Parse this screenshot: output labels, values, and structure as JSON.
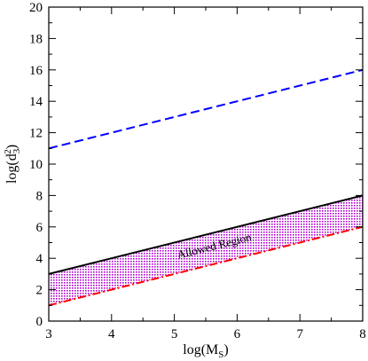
{
  "chart_data": {
    "type": "line",
    "title": "",
    "xlabel": {
      "base": "log(M",
      "sub": "S",
      "close": ")"
    },
    "ylabel": {
      "base": "log(d",
      "sub": "3",
      "sup": "2",
      "close": ")"
    },
    "xlim": [
      3,
      8
    ],
    "ylim": [
      0,
      20
    ],
    "xticks": [
      3,
      4,
      5,
      6,
      7,
      8
    ],
    "yticks": [
      0,
      2,
      4,
      6,
      8,
      10,
      12,
      14,
      16,
      18,
      20
    ],
    "grid": false,
    "legend": "none",
    "series": [
      {
        "style": "dashed",
        "color": "#0000ff",
        "x": [
          3,
          8
        ],
        "y": [
          11,
          16
        ]
      },
      {
        "style": "solid",
        "color": "#000000",
        "x": [
          3,
          8
        ],
        "y": [
          3,
          8
        ]
      },
      {
        "style": "dash-dot",
        "color": "#ff0000",
        "x": [
          3,
          8
        ],
        "y": [
          1,
          6
        ]
      }
    ],
    "shaded_region": {
      "color": "#b000d0",
      "x": [
        3,
        8
      ],
      "upper": [
        3,
        8
      ],
      "lower": [
        1,
        6
      ]
    },
    "annotations": [
      {
        "text": "Allowed Region",
        "x": 5.65,
        "y": 4.55,
        "angle_deg": -14
      }
    ]
  }
}
